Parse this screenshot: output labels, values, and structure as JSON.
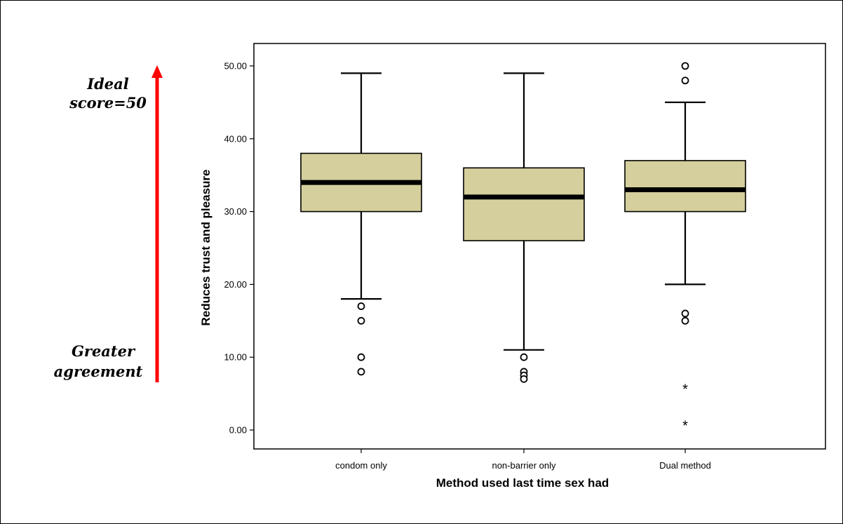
{
  "annotations": {
    "top_line1": "Ideal",
    "top_line2": "score=50",
    "bottom_line1": "Greater",
    "bottom_line2": "agreement",
    "arrow_color": "#ff0000"
  },
  "chart_data": {
    "type": "boxplot",
    "title": "",
    "xlabel": "Method used last time sex had",
    "ylabel": "Reduces trust and pleasure",
    "ylim": [
      0,
      50
    ],
    "yticks": [
      "0.00",
      "10.00",
      "20.00",
      "30.00",
      "40.00",
      "50.00"
    ],
    "box_color": "#d4cf9c",
    "grid": false,
    "categories": [
      "condom only",
      "non-barrier only",
      "Dual method"
    ],
    "boxes": [
      {
        "category": "condom only",
        "whisker_low": 18,
        "q1": 30,
        "median": 34,
        "q3": 38,
        "whisker_high": 49,
        "outliers": [
          17,
          15,
          10,
          8
        ],
        "extremes": []
      },
      {
        "category": "non-barrier only",
        "whisker_low": 11,
        "q1": 26,
        "median": 32,
        "q3": 36,
        "whisker_high": 49,
        "outliers": [
          10,
          8,
          7.5,
          7
        ],
        "extremes": []
      },
      {
        "category": "Dual method",
        "whisker_low": 20,
        "q1": 30,
        "median": 33,
        "q3": 37,
        "whisker_high": 45,
        "outliers": [
          50,
          48,
          16,
          15
        ],
        "extremes": [
          6,
          1
        ]
      }
    ]
  }
}
